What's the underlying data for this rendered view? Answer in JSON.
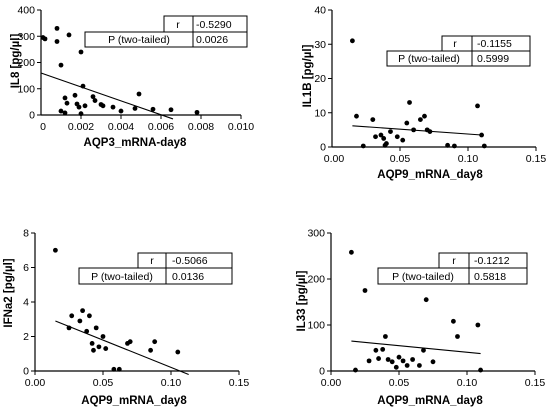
{
  "chart_data": [
    {
      "type": "scatter",
      "xlabel": "AQP3_mRNA-day8",
      "ylabel": "IL8 [pg/µl]",
      "xlim": [
        0,
        0.01
      ],
      "ylim": [
        0,
        400
      ],
      "xticks": [
        0.002,
        0.004,
        0.006,
        0.008,
        0.01
      ],
      "xtick_labels": [
        "0.002",
        "0.004",
        "0.006",
        "0.008",
        "0.010"
      ],
      "yticks": [
        0,
        100,
        200,
        300,
        400
      ],
      "ytick_labels": [
        "0",
        "100",
        "200",
        "300",
        "400"
      ],
      "y_min_label": "0",
      "stats": {
        "r_label": "r",
        "r_value": "-0.5290",
        "p_label": "P (two-tailed)",
        "p_value": "0.0026"
      },
      "regression": {
        "x": [
          0.0,
          0.0066
        ],
        "y": [
          160,
          -15
        ]
      },
      "points": [
        {
          "x": 0.0001,
          "y": 295
        },
        {
          "x": 0.0002,
          "y": 290
        },
        {
          "x": 0.0008,
          "y": 330
        },
        {
          "x": 0.0008,
          "y": 280
        },
        {
          "x": 0.001,
          "y": 190
        },
        {
          "x": 0.0014,
          "y": 305
        },
        {
          "x": 0.0012,
          "y": 65
        },
        {
          "x": 0.0013,
          "y": 45
        },
        {
          "x": 0.001,
          "y": 15
        },
        {
          "x": 0.0012,
          "y": 8
        },
        {
          "x": 0.0017,
          "y": 75
        },
        {
          "x": 0.0018,
          "y": 42
        },
        {
          "x": 0.0019,
          "y": 30
        },
        {
          "x": 0.002,
          "y": 240
        },
        {
          "x": 0.0021,
          "y": 110
        },
        {
          "x": 0.0022,
          "y": 35
        },
        {
          "x": 0.002,
          "y": 5
        },
        {
          "x": 0.0026,
          "y": 70
        },
        {
          "x": 0.0027,
          "y": 55
        },
        {
          "x": 0.003,
          "y": 40
        },
        {
          "x": 0.0031,
          "y": 35
        },
        {
          "x": 0.0036,
          "y": 30
        },
        {
          "x": 0.004,
          "y": 15
        },
        {
          "x": 0.0047,
          "y": 25
        },
        {
          "x": 0.0049,
          "y": 80
        },
        {
          "x": 0.0056,
          "y": 22
        },
        {
          "x": 0.0065,
          "y": 20
        },
        {
          "x": 0.0078,
          "y": 10
        }
      ]
    },
    {
      "type": "scatter",
      "xlabel": "AQP9_mRNA_day8",
      "ylabel": "IL1B [pg/µl]",
      "xlim": [
        0,
        0.15
      ],
      "ylim": [
        0,
        40
      ],
      "xticks": [
        0.05,
        0.1,
        0.15
      ],
      "xtick_labels": [
        "0.05",
        "0.10",
        "0.15"
      ],
      "yticks": [
        0,
        10,
        20,
        30,
        40
      ],
      "ytick_labels": [
        "0",
        "10",
        "20",
        "30",
        "40"
      ],
      "y_min_label": "0.00",
      "stats": {
        "r_label": "r",
        "r_value": "-0.1155",
        "p_label": "P (two-tailed)",
        "p_value": "0.5999"
      },
      "regression": {
        "x": [
          0.015,
          0.11
        ],
        "y": [
          6.2,
          3.5
        ]
      },
      "points": [
        {
          "x": 0.015,
          "y": 31
        },
        {
          "x": 0.018,
          "y": 9
        },
        {
          "x": 0.023,
          "y": 0.3
        },
        {
          "x": 0.03,
          "y": 8
        },
        {
          "x": 0.032,
          "y": 3
        },
        {
          "x": 0.036,
          "y": 3.5
        },
        {
          "x": 0.038,
          "y": 2.5
        },
        {
          "x": 0.039,
          "y": 0.5
        },
        {
          "x": 0.04,
          "y": 1
        },
        {
          "x": 0.043,
          "y": 4.5
        },
        {
          "x": 0.048,
          "y": 3
        },
        {
          "x": 0.052,
          "y": 2
        },
        {
          "x": 0.055,
          "y": 7
        },
        {
          "x": 0.057,
          "y": 13
        },
        {
          "x": 0.06,
          "y": 5
        },
        {
          "x": 0.065,
          "y": 8
        },
        {
          "x": 0.068,
          "y": 9
        },
        {
          "x": 0.07,
          "y": 5
        },
        {
          "x": 0.072,
          "y": 4.5
        },
        {
          "x": 0.085,
          "y": 0.5
        },
        {
          "x": 0.09,
          "y": 0.3
        },
        {
          "x": 0.107,
          "y": 12
        },
        {
          "x": 0.11,
          "y": 3.5
        },
        {
          "x": 0.112,
          "y": 0.3
        }
      ]
    },
    {
      "type": "scatter",
      "xlabel": "AQP9_mRNA_day8",
      "ylabel": "IFNa2 [pg/µl]",
      "xlim": [
        0,
        0.15
      ],
      "ylim": [
        0,
        8
      ],
      "xticks": [
        0.0,
        0.05,
        0.1,
        0.15
      ],
      "xtick_labels": [
        "0.00",
        "0.05",
        "0.10",
        "0.15"
      ],
      "yticks": [
        0,
        2,
        4,
        6,
        8
      ],
      "ytick_labels": [
        "0",
        "2",
        "4",
        "6",
        "8"
      ],
      "stats": {
        "r_label": "r",
        "r_value": "-0.5066",
        "p_label": "P (two-tailed)",
        "p_value": "0.0136"
      },
      "regression": {
        "x": [
          0.015,
          0.113
        ],
        "y": [
          2.9,
          -0.2
        ]
      },
      "points": [
        {
          "x": 0.015,
          "y": 7.0
        },
        {
          "x": 0.025,
          "y": 2.5
        },
        {
          "x": 0.027,
          "y": 3.2
        },
        {
          "x": 0.033,
          "y": 2.9
        },
        {
          "x": 0.035,
          "y": 3.5
        },
        {
          "x": 0.038,
          "y": 2.3
        },
        {
          "x": 0.04,
          "y": 3.2
        },
        {
          "x": 0.042,
          "y": 1.6
        },
        {
          "x": 0.043,
          "y": 1.2
        },
        {
          "x": 0.045,
          "y": 2.5
        },
        {
          "x": 0.047,
          "y": 1.4
        },
        {
          "x": 0.05,
          "y": 2.0
        },
        {
          "x": 0.052,
          "y": 1.3
        },
        {
          "x": 0.058,
          "y": 0.1
        },
        {
          "x": 0.062,
          "y": 0.1
        },
        {
          "x": 0.068,
          "y": 1.6
        },
        {
          "x": 0.07,
          "y": 1.7
        },
        {
          "x": 0.085,
          "y": 1.2
        },
        {
          "x": 0.088,
          "y": 1.7
        },
        {
          "x": 0.105,
          "y": 1.1
        }
      ]
    },
    {
      "type": "scatter",
      "xlabel": "AQP9_mRNA_day8",
      "ylabel": "IL33 [pg/µl]",
      "xlim": [
        0,
        0.15
      ],
      "ylim": [
        0,
        300
      ],
      "xticks": [
        0.0,
        0.05,
        0.1,
        0.15
      ],
      "xtick_labels": [
        "0.00",
        "0.05",
        "0.10",
        "0.15"
      ],
      "yticks": [
        0,
        100,
        200,
        300
      ],
      "ytick_labels": [
        "0",
        "100",
        "200",
        "300"
      ],
      "stats": {
        "r_label": "r",
        "r_value": "-0.1212",
        "p_label": "P (two-tailed)",
        "p_value": "0.5818"
      },
      "regression": {
        "x": [
          0.015,
          0.11
        ],
        "y": [
          65,
          38
        ]
      },
      "points": [
        {
          "x": 0.015,
          "y": 258
        },
        {
          "x": 0.018,
          "y": 2
        },
        {
          "x": 0.025,
          "y": 175
        },
        {
          "x": 0.028,
          "y": 22
        },
        {
          "x": 0.033,
          "y": 45
        },
        {
          "x": 0.035,
          "y": 27
        },
        {
          "x": 0.038,
          "y": 47
        },
        {
          "x": 0.04,
          "y": 75
        },
        {
          "x": 0.042,
          "y": 25
        },
        {
          "x": 0.045,
          "y": 20
        },
        {
          "x": 0.048,
          "y": 8
        },
        {
          "x": 0.05,
          "y": 30
        },
        {
          "x": 0.053,
          "y": 22
        },
        {
          "x": 0.056,
          "y": 12
        },
        {
          "x": 0.06,
          "y": 25
        },
        {
          "x": 0.065,
          "y": 12
        },
        {
          "x": 0.068,
          "y": 45
        },
        {
          "x": 0.07,
          "y": 155
        },
        {
          "x": 0.075,
          "y": 20
        },
        {
          "x": 0.09,
          "y": 108
        },
        {
          "x": 0.093,
          "y": 75
        },
        {
          "x": 0.108,
          "y": 100
        },
        {
          "x": 0.11,
          "y": 2
        }
      ]
    }
  ]
}
